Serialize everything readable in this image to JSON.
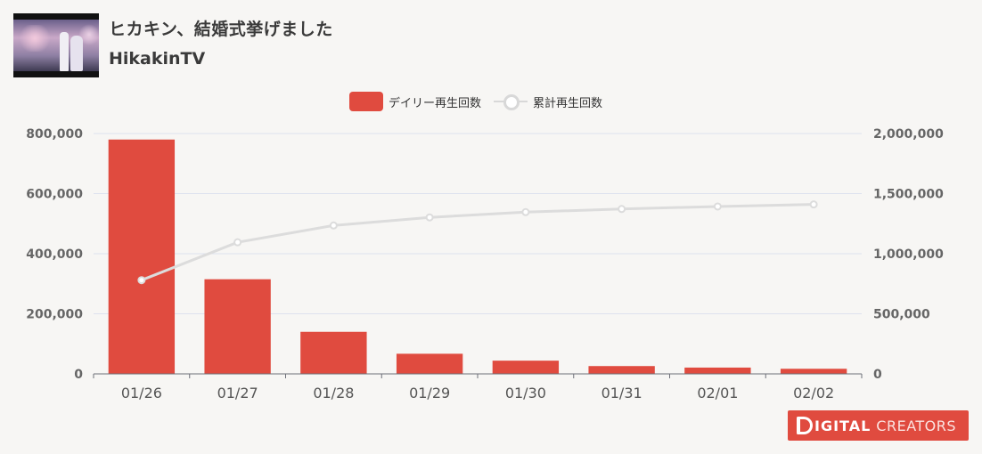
{
  "header": {
    "title": "ヒカキン、結婚式挙げました",
    "channel": "HikakinTV"
  },
  "legend": {
    "daily_label": "デイリー再生回数",
    "cumulative_label": "累計再生回数"
  },
  "brand": {
    "word1": "IGITAL",
    "word2": "CREATORS"
  },
  "colors": {
    "bar": "#e04b3f",
    "line": "#dcdcdc",
    "grid": "#dde1ee",
    "axis_text": "#666666"
  },
  "chart_data": {
    "type": "bar",
    "categories": [
      "01/26",
      "01/27",
      "01/28",
      "01/29",
      "01/30",
      "01/31",
      "02/01",
      "02/02"
    ],
    "series": [
      {
        "name": "デイリー再生回数",
        "type": "bar",
        "axis": "left",
        "values": [
          780000,
          315000,
          140000,
          67000,
          44000,
          26000,
          21000,
          17000
        ]
      },
      {
        "name": "累計再生回数",
        "type": "line",
        "axis": "right",
        "values": [
          780000,
          1095000,
          1235000,
          1302000,
          1346000,
          1372000,
          1393000,
          1410000
        ]
      }
    ],
    "y_left": {
      "min": 0,
      "max": 800000,
      "ticks": [
        0,
        200000,
        400000,
        600000,
        800000
      ],
      "tick_labels": [
        "0",
        "200,000",
        "400,000",
        "600,000",
        "800,000"
      ]
    },
    "y_right": {
      "min": 0,
      "max": 2000000,
      "ticks": [
        0,
        500000,
        1000000,
        1500000,
        2000000
      ],
      "tick_labels": [
        "0",
        "500,000",
        "1,000,000",
        "1,500,000",
        "2,000,000"
      ]
    },
    "grid": true,
    "legend_position": "top-center"
  }
}
